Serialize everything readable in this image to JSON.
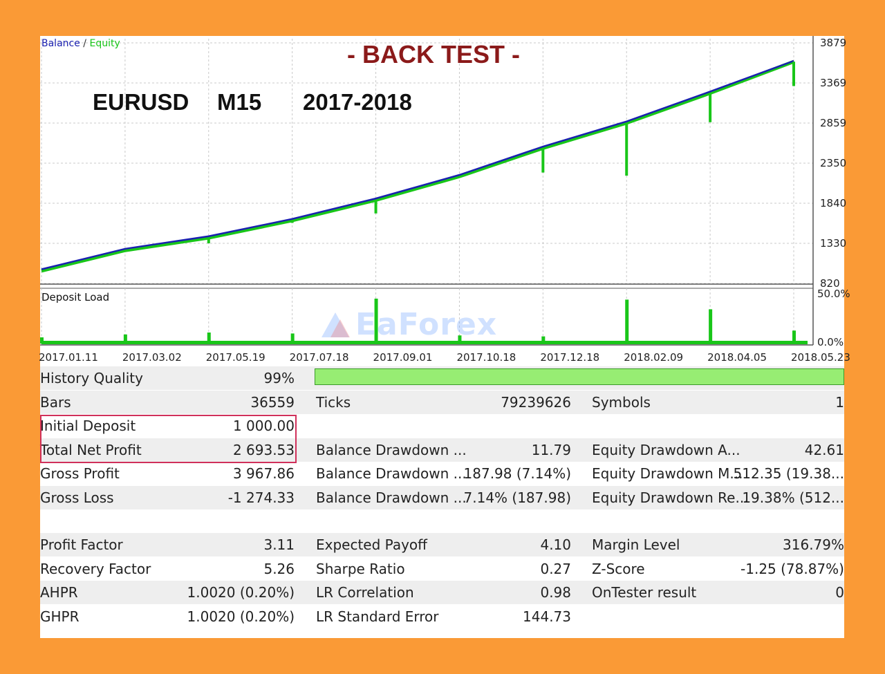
{
  "legend": {
    "balance": "Balance",
    "sep": " / ",
    "equity": "Equity"
  },
  "overlay": {
    "title": "- BACK TEST -",
    "symbol": "EURUSD",
    "timeframe": "M15",
    "period": "2017-2018"
  },
  "deposit_load_label": "Deposit Load",
  "watermark": "EaForex",
  "colors": {
    "background": "#FA9A36",
    "balance": "#1a20b0",
    "equity": "#19c619",
    "title": "#8B1A1A",
    "highlight": "#d0305a",
    "quality_bar": "#97ED73"
  },
  "chart_data": [
    {
      "type": "line",
      "x": [
        "2017.01.11",
        "2017.03.02",
        "2017.05.19",
        "2017.07.18",
        "2017.09.01",
        "2017.10.18",
        "2017.12.18",
        "2018.02.09",
        "2018.04.05",
        "2018.05.23"
      ],
      "y_ticks": [
        "3879",
        "3369",
        "2859",
        "2350",
        "1840",
        "1330",
        "820"
      ],
      "ylim": [
        820,
        3879
      ],
      "grid": true,
      "series": [
        {
          "name": "Balance",
          "values": [
            1000,
            1260,
            1420,
            1640,
            1900,
            2200,
            2560,
            2880,
            3260,
            3650
          ]
        },
        {
          "name": "Equity",
          "values": [
            980,
            1240,
            1400,
            1620,
            1880,
            2180,
            2540,
            2860,
            3240,
            3640
          ]
        }
      ],
      "equity_dips": [
        {
          "x": "2017.05.19",
          "value": 1330
        },
        {
          "x": "2017.07.18",
          "value": 1590
        },
        {
          "x": "2017.09.01",
          "value": 1710
        },
        {
          "x": "2017.12.18",
          "value": 2230
        },
        {
          "x": "2018.02.09",
          "value": 2190
        },
        {
          "x": "2018.04.05",
          "value": 2870
        },
        {
          "x": "2018.05.23",
          "value": 3330
        }
      ]
    },
    {
      "type": "bar",
      "title": "Deposit Load",
      "y_ticks": [
        "50.0%",
        "0.0%"
      ],
      "ylim": [
        0,
        50
      ],
      "spikes": [
        {
          "x": "2017.01.11",
          "value": 5
        },
        {
          "x": "2017.03.02",
          "value": 8
        },
        {
          "x": "2017.05.19",
          "value": 10
        },
        {
          "x": "2017.07.18",
          "value": 9
        },
        {
          "x": "2017.09.01",
          "value": 45
        },
        {
          "x": "2017.10.18",
          "value": 7
        },
        {
          "x": "2017.12.18",
          "value": 6
        },
        {
          "x": "2018.02.09",
          "value": 44
        },
        {
          "x": "2018.04.05",
          "value": 34
        },
        {
          "x": "2018.05.23",
          "value": 12
        }
      ]
    }
  ],
  "stats": {
    "history_quality": {
      "label": "History Quality",
      "value": "99%"
    },
    "rows": [
      {
        "c1": [
          "Bars",
          "36559"
        ],
        "c2": [
          "Ticks",
          "79239626"
        ],
        "c3": [
          "Symbols",
          "1"
        ],
        "shade": true
      },
      {
        "c1": [
          "Initial Deposit",
          "1 000.00"
        ],
        "c2": [
          "",
          ""
        ],
        "c3": [
          "",
          ""
        ],
        "shade": false
      },
      {
        "c1": [
          "Total Net Profit",
          "2 693.53"
        ],
        "c2": [
          "Balance Drawdown ...",
          "11.79"
        ],
        "c3": [
          "Equity Drawdown A...",
          "42.61"
        ],
        "shade": true
      },
      {
        "c1": [
          "Gross Profit",
          "3 967.86"
        ],
        "c2": [
          "Balance Drawdown ...",
          "187.98 (7.14%)"
        ],
        "c3": [
          "Equity Drawdown M...",
          "512.35 (19.38..."
        ],
        "shade": false
      },
      {
        "c1": [
          "Gross Loss",
          "-1 274.33"
        ],
        "c2": [
          "Balance Drawdown ...",
          "7.14% (187.98)"
        ],
        "c3": [
          "Equity Drawdown Re...",
          "19.38% (512..."
        ],
        "shade": true
      },
      {
        "c1": [
          "",
          ""
        ],
        "c2": [
          "",
          ""
        ],
        "c3": [
          "",
          ""
        ],
        "shade": false
      },
      {
        "c1": [
          "Profit Factor",
          "3.11"
        ],
        "c2": [
          "Expected Payoff",
          "4.10"
        ],
        "c3": [
          "Margin Level",
          "316.79%"
        ],
        "shade": true
      },
      {
        "c1": [
          "Recovery Factor",
          "5.26"
        ],
        "c2": [
          "Sharpe Ratio",
          "0.27"
        ],
        "c3": [
          "Z-Score",
          "-1.25 (78.87%)"
        ],
        "shade": false
      },
      {
        "c1": [
          "AHPR",
          "1.0020 (0.20%)"
        ],
        "c2": [
          "LR Correlation",
          "0.98"
        ],
        "c3": [
          "OnTester result",
          "0"
        ],
        "shade": true
      },
      {
        "c1": [
          "GHPR",
          "1.0020 (0.20%)"
        ],
        "c2": [
          "LR Standard Error",
          "144.73"
        ],
        "c3": [
          "",
          ""
        ],
        "shade": false
      }
    ]
  }
}
